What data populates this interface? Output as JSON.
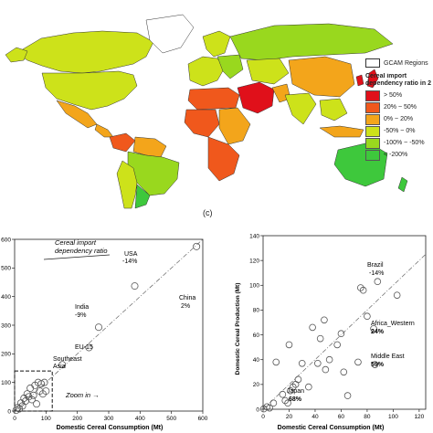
{
  "legend": {
    "region_label": "GCAM Regions",
    "title_line1": "Cereal import",
    "title_line2": "dependency ratio in 2",
    "items": [
      {
        "label": "> 50%",
        "color": "#e0101a"
      },
      {
        "label": "20% ~ 50%",
        "color": "#f0581c"
      },
      {
        "label": "0% ~ 20%",
        "color": "#f3a51b"
      },
      {
        "label": "-50% ~ 0%",
        "color": "#cde21a"
      },
      {
        "label": "-100% ~ -50%",
        "color": "#99d81e"
      },
      {
        "label": "< -200%",
        "color": "#3ec83c"
      }
    ]
  },
  "panel_label": "(c)",
  "chart_data": [
    {
      "type": "scatter",
      "xlabel": "Domestic Cereal Consumption (Mt)",
      "ylabel": "",
      "xlim": [
        0,
        600
      ],
      "ylim": [
        0,
        600
      ],
      "xticks": [
        "0",
        "100",
        "200",
        "300",
        "400",
        "500",
        "600"
      ],
      "yticks": [
        "0",
        "100",
        "200",
        "300",
        "400",
        "500",
        "600"
      ],
      "annotations": {
        "ratio_line1": "Cereal import",
        "ratio_line2": "dependency ratio",
        "zoom": "Zoom in →",
        "usa_name": "USA",
        "usa_value": "-14%",
        "china_name": "China",
        "china_value": "2%",
        "india_name": "India",
        "india_value": "-9%",
        "eu_name": "EU-15",
        "sea_name1": "Southeast",
        "sea_name2": "Asia"
      },
      "points": [
        {
          "x": 580,
          "y": 575
        },
        {
          "x": 383,
          "y": 437
        },
        {
          "x": 268,
          "y": 293
        },
        {
          "x": 237,
          "y": 222
        },
        {
          "x": 152,
          "y": 162
        },
        {
          "x": 5,
          "y": 3
        },
        {
          "x": 10,
          "y": 12
        },
        {
          "x": 15,
          "y": 8
        },
        {
          "x": 20,
          "y": 28
        },
        {
          "x": 25,
          "y": 18
        },
        {
          "x": 30,
          "y": 45
        },
        {
          "x": 35,
          "y": 35
        },
        {
          "x": 40,
          "y": 60
        },
        {
          "x": 45,
          "y": 50
        },
        {
          "x": 50,
          "y": 80
        },
        {
          "x": 55,
          "y": 40
        },
        {
          "x": 60,
          "y": 55
        },
        {
          "x": 65,
          "y": 90
        },
        {
          "x": 70,
          "y": 25
        },
        {
          "x": 75,
          "y": 100
        },
        {
          "x": 80,
          "y": 70
        },
        {
          "x": 85,
          "y": 95
        },
        {
          "x": 90,
          "y": 60
        },
        {
          "x": 95,
          "y": 100
        },
        {
          "x": 100,
          "y": 70
        }
      ]
    },
    {
      "type": "scatter",
      "xlabel": "Domestic Cereal Consumption (Mt)",
      "ylabel": "Domestic Cereal Production (Mt)",
      "xlim": [
        0,
        125
      ],
      "ylim": [
        0,
        140
      ],
      "xticks": [
        "0",
        "20",
        "40",
        "60",
        "80",
        "100",
        "120"
      ],
      "yticks": [
        "0",
        "20",
        "40",
        "60",
        "80",
        "100",
        "120",
        "140"
      ],
      "annotations": {
        "brazil_name": "Brazil",
        "brazil_value": "-14%",
        "africa_name": "Africa_Western",
        "africa_value": "24%",
        "me_name": "Middle East",
        "me_value": "59%",
        "japan_name": "Japan",
        "japan_value": "68%"
      },
      "points": [
        {
          "x": 0.5,
          "y": 0.3
        },
        {
          "x": 3,
          "y": 2
        },
        {
          "x": 5,
          "y": 1
        },
        {
          "x": 8,
          "y": 5
        },
        {
          "x": 10,
          "y": 38
        },
        {
          "x": 15,
          "y": 12
        },
        {
          "x": 17,
          "y": 7
        },
        {
          "x": 19,
          "y": 5
        },
        {
          "x": 20,
          "y": 52
        },
        {
          "x": 21,
          "y": 15
        },
        {
          "x": 23,
          "y": 18
        },
        {
          "x": 25,
          "y": 20
        },
        {
          "x": 27,
          "y": 24
        },
        {
          "x": 30,
          "y": 37
        },
        {
          "x": 35,
          "y": 18
        },
        {
          "x": 38,
          "y": 66
        },
        {
          "x": 42,
          "y": 37
        },
        {
          "x": 44,
          "y": 57
        },
        {
          "x": 47,
          "y": 72
        },
        {
          "x": 48,
          "y": 32
        },
        {
          "x": 51,
          "y": 40
        },
        {
          "x": 57,
          "y": 52
        },
        {
          "x": 60,
          "y": 61
        },
        {
          "x": 62,
          "y": 30
        },
        {
          "x": 65,
          "y": 11
        },
        {
          "x": 73,
          "y": 38
        },
        {
          "x": 75,
          "y": 98
        },
        {
          "x": 77,
          "y": 96
        },
        {
          "x": 80,
          "y": 75
        },
        {
          "x": 85,
          "y": 65
        },
        {
          "x": 86,
          "y": 36
        },
        {
          "x": 88,
          "y": 103
        },
        {
          "x": 103,
          "y": 92
        }
      ]
    }
  ]
}
